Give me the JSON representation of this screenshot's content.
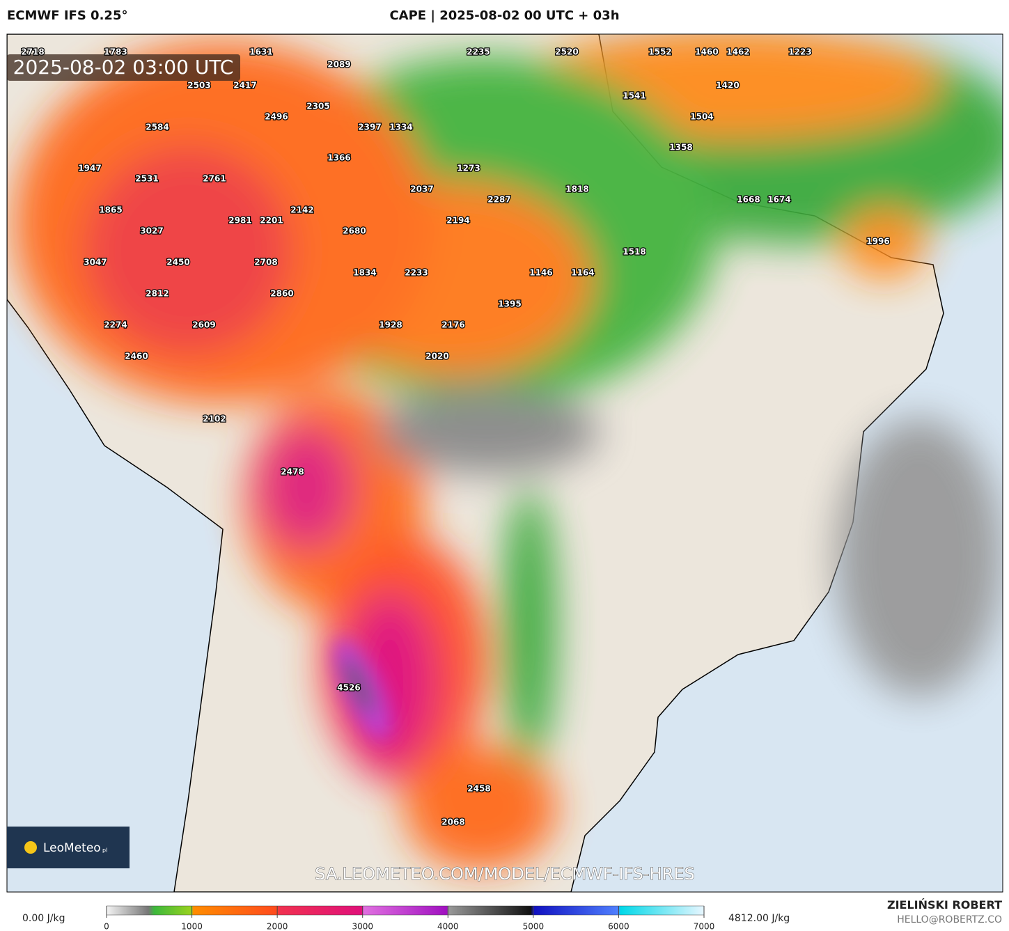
{
  "header": {
    "model": "ECMWF IFS 0.25°",
    "title": "CAPE | 2025-08-02 00 UTC + 03h"
  },
  "map": {
    "timestamp": "2025-08-02 03:00 UTC",
    "url": "SA.LEOMETEO.COM/MODEL/ECMWF-IFS-HRES",
    "logo": "LeoMeteo",
    "logo_suffix": "pl",
    "labels": [
      2718,
      1783,
      1631,
      2089,
      2235,
      2520,
      1552,
      1460,
      1462,
      1223,
      2503,
      2417,
      1541,
      1420,
      2305,
      2496,
      2397,
      1334,
      1504,
      2584,
      1358,
      1366,
      1273,
      1947,
      2531,
      2761,
      2037,
      1818,
      1668,
      1674,
      2287,
      1865,
      2142,
      2981,
      2201,
      2194,
      3027,
      2680,
      1996,
      1518,
      3047,
      2450,
      2708,
      1834,
      2233,
      1146,
      1164,
      2812,
      2860,
      1395,
      2274,
      2609,
      1928,
      2176,
      2460,
      2020,
      2102,
      2478,
      4526,
      2458,
      2068
    ]
  },
  "colorbar": {
    "min_label": "0.00 J/kg",
    "max_label": "4812.00 J/kg",
    "ticks": [
      0,
      1000,
      2000,
      3000,
      4000,
      5000,
      6000,
      7000
    ]
  },
  "footer": {
    "author": "ZIELIŃSKI ROBERT",
    "email": "HELLO@ROBERTZ.CO"
  }
}
